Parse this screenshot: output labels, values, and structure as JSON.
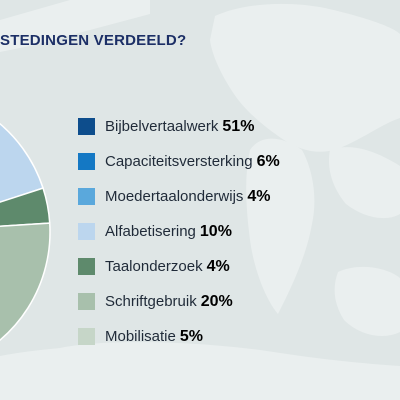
{
  "title": "STEDINGEN VERDEELD?",
  "chart_data": {
    "type": "pie",
    "title": "STEDINGEN VERDEELD?",
    "slices": [
      {
        "label": "Bijbelvertaalwerk",
        "value": 51,
        "value_label": "51%",
        "color": "#0d4d8c"
      },
      {
        "label": "Capaciteitsversterking",
        "value": 6,
        "value_label": "6%",
        "color": "#1478c4"
      },
      {
        "label": "Moedertaalonderwijs",
        "value": 4,
        "value_label": "4%",
        "color": "#5aa8dc"
      },
      {
        "label": "Alfabetisering",
        "value": 10,
        "value_label": "10%",
        "color": "#bcd6ee"
      },
      {
        "label": "Taalonderzoek",
        "value": 4,
        "value_label": "4%",
        "color": "#5e8a6c"
      },
      {
        "label": "Schriftgebruik",
        "value": 20,
        "value_label": "20%",
        "color": "#a8c0ac"
      },
      {
        "label": "Mobilisatie",
        "value": 5,
        "value_label": "5%",
        "color": "#c6d6c8"
      }
    ],
    "legend_position": "right"
  }
}
